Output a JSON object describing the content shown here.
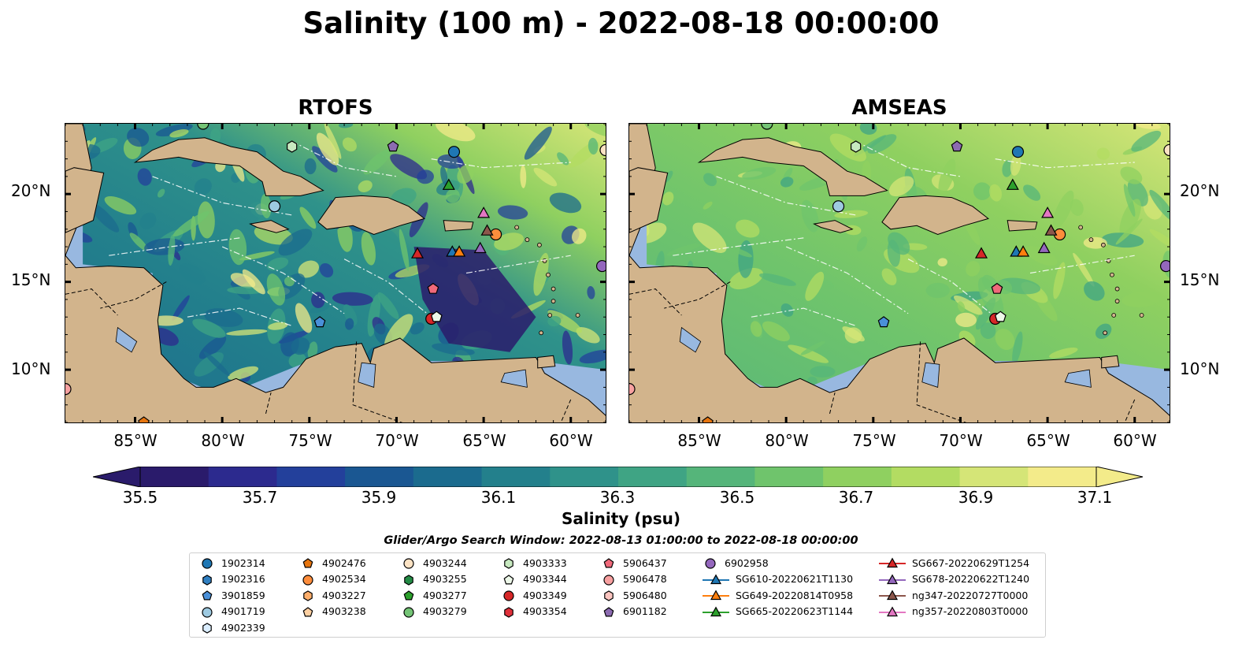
{
  "title": "Salinity (100 m) - 2022-08-18 00:00:00",
  "panels": [
    {
      "title": "RTOFS",
      "variant": "rtofs"
    },
    {
      "title": "AMSEAS",
      "variant": "amseas"
    }
  ],
  "lat_ticks": [
    "20°N",
    "15°N",
    "10°N"
  ],
  "lat_values": [
    20,
    15,
    10
  ],
  "lon_ticks": [
    "85°W",
    "80°W",
    "75°W",
    "70°W",
    "65°W",
    "60°W"
  ],
  "lon_values": [
    -85,
    -80,
    -75,
    -70,
    -65,
    -60
  ],
  "extent": {
    "lon_min": -89,
    "lon_max": -58,
    "lat_min": 7,
    "lat_max": 24
  },
  "colorbar": {
    "label": "Salinity (psu)",
    "min": 35.4,
    "max": 37.2,
    "ticks": [
      "35.5",
      "35.7",
      "35.9",
      "36.1",
      "36.3",
      "36.5",
      "36.7",
      "36.9",
      "37.1"
    ],
    "tick_values": [
      35.5,
      35.7,
      35.9,
      36.1,
      36.3,
      36.5,
      36.7,
      36.9,
      37.1
    ],
    "colors": [
      "#2a1b6b",
      "#2c2a8e",
      "#23409b",
      "#1a5792",
      "#1b6b8e",
      "#23808c",
      "#2f928a",
      "#3fa484",
      "#55b57a",
      "#6fc46c",
      "#8fd060",
      "#b3dc62",
      "#d5e577",
      "#f3eb8a"
    ]
  },
  "colors": {
    "land": "#d2b48c",
    "ocean_bg": "#98b8e0"
  },
  "search_window": "Glider/Argo Search Window: 2022-08-13 01:00:00 to 2022-08-18 00:00:00",
  "legend": [
    {
      "label": "1902314",
      "marker": "circle",
      "color": "#1f77b4"
    },
    {
      "label": "1902316",
      "marker": "hexagon",
      "color": "#2f7fc1"
    },
    {
      "label": "3901859",
      "marker": "pentagon",
      "color": "#4a90d9"
    },
    {
      "label": "4901719",
      "marker": "circle",
      "color": "#9ecae1"
    },
    {
      "label": "4902339",
      "marker": "hexagon",
      "color": "#dbeeff"
    },
    {
      "label": "4902476",
      "marker": "pentagon",
      "color": "#e6750f"
    },
    {
      "label": "4902534",
      "marker": "circle",
      "color": "#fd8d3c"
    },
    {
      "label": "4903227",
      "marker": "hexagon",
      "color": "#fdae6b"
    },
    {
      "label": "4903238",
      "marker": "pentagon",
      "color": "#fdd0a2"
    },
    {
      "label": "4903244",
      "marker": "circle",
      "color": "#fde3c4"
    },
    {
      "label": "4903255",
      "marker": "hexagon",
      "color": "#238b45"
    },
    {
      "label": "4903277",
      "marker": "pentagon",
      "color": "#2ca02c"
    },
    {
      "label": "4903279",
      "marker": "circle",
      "color": "#74c476"
    },
    {
      "label": "4903333",
      "marker": "hexagon",
      "color": "#c7e9c0"
    },
    {
      "label": "4903344",
      "marker": "pentagon",
      "color": "#edf8e9"
    },
    {
      "label": "4903349",
      "marker": "circle",
      "color": "#d62728"
    },
    {
      "label": "4903354",
      "marker": "hexagon",
      "color": "#e0303a"
    },
    {
      "label": "5906437",
      "marker": "pentagon",
      "color": "#f0697a"
    },
    {
      "label": "5906478",
      "marker": "circle",
      "color": "#f7a0a0"
    },
    {
      "label": "5906480",
      "marker": "hexagon",
      "color": "#fcc5c0"
    },
    {
      "label": "6901182",
      "marker": "pentagon",
      "color": "#8c6bb1"
    },
    {
      "label": "6902958",
      "marker": "circle",
      "color": "#9467bd"
    },
    {
      "label": "SG610-20220621T1130",
      "marker": "triangle-line",
      "color": "#1f77b4"
    },
    {
      "label": "SG649-20220814T0958",
      "marker": "triangle-line",
      "color": "#ff7f0e"
    },
    {
      "label": "SG665-20220623T1144",
      "marker": "triangle-line",
      "color": "#2ca02c"
    },
    {
      "label": "SG667-20220629T1254",
      "marker": "triangle-line",
      "color": "#d62728"
    },
    {
      "label": "SG678-20220622T1240",
      "marker": "triangle-line",
      "color": "#9467bd"
    },
    {
      "label": "ng347-20220727T0000",
      "marker": "triangle-line",
      "color": "#8c564b"
    },
    {
      "label": "ng357-20220803T0000",
      "marker": "triangle-line",
      "color": "#e377c2"
    }
  ],
  "markers": [
    {
      "id": "1902314",
      "lon": -66.7,
      "lat": 22.4
    },
    {
      "id": "6902958",
      "lon": -58.2,
      "lat": 15.9
    },
    {
      "id": "4901719",
      "lon": -77.0,
      "lat": 19.3
    },
    {
      "id": "4903333",
      "lon": -76.0,
      "lat": 22.7
    },
    {
      "id": "6901182",
      "lon": -70.2,
      "lat": 22.7
    },
    {
      "id": "4903244",
      "lon": -58.0,
      "lat": 22.5
    },
    {
      "id": "4903279",
      "lon": -81.1,
      "lat": 24.0
    },
    {
      "id": "5906478",
      "lon": -89.0,
      "lat": 8.9
    },
    {
      "id": "3901859",
      "lon": -74.4,
      "lat": 12.7
    },
    {
      "id": "5906437",
      "lon": -67.9,
      "lat": 14.6
    },
    {
      "id": "4903349",
      "lon": -68.0,
      "lat": 12.9
    },
    {
      "id": "4903344",
      "lon": -67.7,
      "lat": 13.0
    },
    {
      "id": "4902534",
      "lon": -64.3,
      "lat": 17.7
    },
    {
      "id": "4902476",
      "lon": -84.5,
      "lat": 7.0
    },
    {
      "id": "SG667-20220629T1254",
      "lon": -68.8,
      "lat": 16.6
    },
    {
      "id": "SG678-20220622T1240",
      "lon": -65.2,
      "lat": 16.9
    },
    {
      "id": "SG665-20220623T1144",
      "lon": -67.0,
      "lat": 20.5
    },
    {
      "id": "SG610-20220621T1130",
      "lon": -66.8,
      "lat": 16.7
    },
    {
      "id": "SG649-20220814T0958",
      "lon": -66.4,
      "lat": 16.7
    },
    {
      "id": "ng347-20220727T0000",
      "lon": -64.8,
      "lat": 17.9
    },
    {
      "id": "ng357-20220803T0000",
      "lon": -65.0,
      "lat": 18.9
    }
  ]
}
